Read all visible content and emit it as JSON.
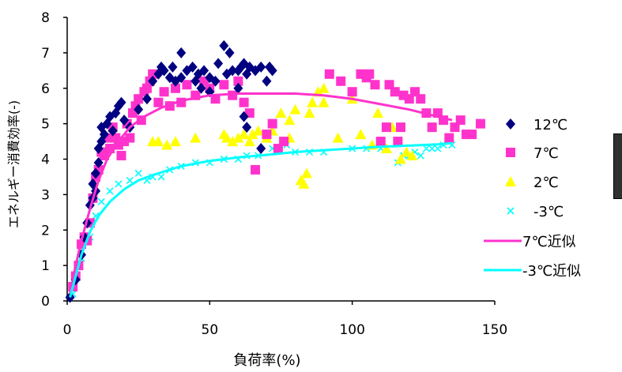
{
  "chart_data": {
    "type": "scatter",
    "xlabel": "負荷率(%)",
    "ylabel": "エネルギー消費効率(-)",
    "xlim": [
      0,
      150
    ],
    "ylim": [
      0,
      8
    ],
    "xticks": [
      0,
      50,
      100,
      150
    ],
    "yticks": [
      0,
      1,
      2,
      3,
      4,
      5,
      6,
      7,
      8
    ],
    "xtick_labels": [
      "0",
      "50",
      "100",
      "150"
    ],
    "ytick_labels": [
      "0",
      "1",
      "2",
      "3",
      "4",
      "5",
      "6",
      "7",
      "8"
    ],
    "grid": false,
    "legend_position": "right",
    "series": [
      {
        "name": "12℃",
        "marker": "diamond",
        "color": "#000080",
        "points": [
          [
            1,
            0.1
          ],
          [
            3,
            0.6
          ],
          [
            5,
            1.3
          ],
          [
            6,
            1.8
          ],
          [
            7,
            2.2
          ],
          [
            8,
            2.7
          ],
          [
            9,
            2.9
          ],
          [
            9,
            3.3
          ],
          [
            10,
            3.1
          ],
          [
            10,
            3.6
          ],
          [
            11,
            3.9
          ],
          [
            11,
            4.3
          ],
          [
            12,
            4.5
          ],
          [
            12,
            4.9
          ],
          [
            13,
            4.7
          ],
          [
            14,
            5.0
          ],
          [
            15,
            5.2
          ],
          [
            16,
            4.8
          ],
          [
            17,
            5.3
          ],
          [
            18,
            5.5
          ],
          [
            19,
            5.6
          ],
          [
            20,
            5.1
          ],
          [
            22,
            4.9
          ],
          [
            25,
            5.4
          ],
          [
            28,
            5.7
          ],
          [
            30,
            6.2
          ],
          [
            32,
            6.4
          ],
          [
            33,
            6.6
          ],
          [
            34,
            6.5
          ],
          [
            36,
            6.3
          ],
          [
            37,
            6.6
          ],
          [
            38,
            6.2
          ],
          [
            40,
            6.3
          ],
          [
            40,
            7.0
          ],
          [
            42,
            6.5
          ],
          [
            44,
            6.6
          ],
          [
            45,
            6.2
          ],
          [
            46,
            6.4
          ],
          [
            48,
            6.5
          ],
          [
            50,
            6.3
          ],
          [
            52,
            6.2
          ],
          [
            53,
            6.7
          ],
          [
            55,
            7.2
          ],
          [
            56,
            6.4
          ],
          [
            57,
            7.0
          ],
          [
            58,
            6.5
          ],
          [
            60,
            6.5
          ],
          [
            61,
            6.6
          ],
          [
            62,
            6.7
          ],
          [
            63,
            6.4
          ],
          [
            64,
            6.6
          ],
          [
            66,
            6.5
          ],
          [
            68,
            6.6
          ],
          [
            70,
            6.2
          ],
          [
            71,
            6.6
          ],
          [
            72,
            6.5
          ],
          [
            62,
            5.2
          ],
          [
            63,
            4.9
          ],
          [
            68,
            4.3
          ],
          [
            60,
            6.0
          ],
          [
            50,
            5.9
          ],
          [
            47,
            6.0
          ]
        ]
      },
      {
        "name": "7℃",
        "marker": "square",
        "color": "#ff33cc",
        "points": [
          [
            2,
            0.4
          ],
          [
            3,
            0.7
          ],
          [
            4,
            1.0
          ],
          [
            5,
            1.6
          ],
          [
            6,
            1.8
          ],
          [
            7,
            1.7
          ],
          [
            8,
            2.2
          ],
          [
            9,
            2.9
          ],
          [
            10,
            3.5
          ],
          [
            11,
            3.7
          ],
          [
            12,
            4.2
          ],
          [
            13,
            4.1
          ],
          [
            14,
            4.6
          ],
          [
            15,
            4.3
          ],
          [
            16,
            4.9
          ],
          [
            17,
            4.6
          ],
          [
            18,
            4.4
          ],
          [
            19,
            4.1
          ],
          [
            20,
            4.5
          ],
          [
            21,
            5.0
          ],
          [
            22,
            4.6
          ],
          [
            23,
            5.3
          ],
          [
            24,
            5.5
          ],
          [
            25,
            5.7
          ],
          [
            26,
            5.1
          ],
          [
            27,
            5.9
          ],
          [
            28,
            6.0
          ],
          [
            29,
            6.2
          ],
          [
            30,
            6.4
          ],
          [
            32,
            5.6
          ],
          [
            34,
            5.9
          ],
          [
            36,
            5.5
          ],
          [
            38,
            6.0
          ],
          [
            40,
            5.6
          ],
          [
            42,
            6.1
          ],
          [
            45,
            5.8
          ],
          [
            48,
            6.2
          ],
          [
            50,
            6.0
          ],
          [
            52,
            5.7
          ],
          [
            55,
            6.1
          ],
          [
            58,
            5.8
          ],
          [
            60,
            6.2
          ],
          [
            62,
            5.6
          ],
          [
            64,
            5.3
          ],
          [
            66,
            3.7
          ],
          [
            70,
            4.7
          ],
          [
            72,
            5.0
          ],
          [
            74,
            4.3
          ],
          [
            76,
            4.5
          ],
          [
            92,
            6.4
          ],
          [
            103,
            6.4
          ],
          [
            105,
            6.3
          ],
          [
            106,
            6.4
          ],
          [
            108,
            6.1
          ],
          [
            110,
            4.5
          ],
          [
            112,
            4.9
          ],
          [
            113,
            6.1
          ],
          [
            115,
            5.9
          ],
          [
            117,
            4.9
          ],
          [
            118,
            5.8
          ],
          [
            120,
            5.7
          ],
          [
            122,
            5.9
          ],
          [
            124,
            5.7
          ],
          [
            126,
            5.3
          ],
          [
            128,
            4.9
          ],
          [
            130,
            5.3
          ],
          [
            132,
            5.1
          ],
          [
            134,
            4.6
          ],
          [
            136,
            4.9
          ],
          [
            138,
            5.1
          ],
          [
            140,
            4.7
          ],
          [
            142,
            4.7
          ],
          [
            145,
            5.0
          ],
          [
            96,
            6.2
          ],
          [
            100,
            5.9
          ],
          [
            116,
            4.5
          ]
        ]
      },
      {
        "name": "2℃",
        "marker": "triangle",
        "color": "#ffff00",
        "points": [
          [
            30,
            4.5
          ],
          [
            32,
            4.5
          ],
          [
            35,
            4.4
          ],
          [
            38,
            4.5
          ],
          [
            45,
            4.6
          ],
          [
            55,
            4.7
          ],
          [
            56,
            4.6
          ],
          [
            58,
            4.5
          ],
          [
            60,
            4.6
          ],
          [
            62,
            4.7
          ],
          [
            64,
            4.5
          ],
          [
            65,
            4.7
          ],
          [
            67,
            4.8
          ],
          [
            70,
            4.6
          ],
          [
            72,
            4.8
          ],
          [
            75,
            5.3
          ],
          [
            78,
            5.1
          ],
          [
            80,
            5.4
          ],
          [
            82,
            3.4
          ],
          [
            83,
            3.3
          ],
          [
            84,
            3.6
          ],
          [
            85,
            5.3
          ],
          [
            86,
            5.6
          ],
          [
            88,
            5.9
          ],
          [
            90,
            5.6
          ],
          [
            95,
            4.6
          ],
          [
            100,
            5.7
          ],
          [
            103,
            4.7
          ],
          [
            107,
            4.4
          ],
          [
            109,
            5.3
          ],
          [
            112,
            4.3
          ],
          [
            114,
            4.9
          ],
          [
            117,
            4.0
          ],
          [
            119,
            4.2
          ],
          [
            121,
            4.1
          ],
          [
            78,
            4.6
          ],
          [
            90,
            6.0
          ]
        ]
      },
      {
        "name": "-3℃",
        "marker": "x",
        "color": "#00ffff",
        "points": [
          [
            2,
            0.2
          ],
          [
            5,
            1.2
          ],
          [
            8,
            1.8
          ],
          [
            10,
            2.4
          ],
          [
            12,
            2.8
          ],
          [
            15,
            3.1
          ],
          [
            18,
            3.3
          ],
          [
            22,
            3.4
          ],
          [
            25,
            3.6
          ],
          [
            28,
            3.4
          ],
          [
            30,
            3.5
          ],
          [
            33,
            3.5
          ],
          [
            36,
            3.7
          ],
          [
            40,
            3.8
          ],
          [
            45,
            3.9
          ],
          [
            50,
            3.9
          ],
          [
            55,
            4.0
          ],
          [
            60,
            4.0
          ],
          [
            63,
            4.1
          ],
          [
            67,
            4.1
          ],
          [
            72,
            4.3
          ],
          [
            77,
            4.4
          ],
          [
            80,
            4.2
          ],
          [
            85,
            4.2
          ],
          [
            90,
            4.2
          ],
          [
            100,
            4.3
          ],
          [
            105,
            4.3
          ],
          [
            110,
            4.3
          ],
          [
            116,
            3.9
          ],
          [
            118,
            4.1
          ],
          [
            120,
            4.1
          ],
          [
            122,
            4.2
          ],
          [
            124,
            4.1
          ],
          [
            126,
            4.3
          ],
          [
            128,
            4.3
          ],
          [
            130,
            4.3
          ],
          [
            132,
            4.4
          ],
          [
            134,
            4.5
          ],
          [
            135,
            4.4
          ]
        ]
      },
      {
        "name": "7℃近似",
        "marker": "line",
        "color": "#ff33cc",
        "points": [
          [
            1,
            0.2
          ],
          [
            3,
            1.0
          ],
          [
            5,
            1.7
          ],
          [
            8,
            2.6
          ],
          [
            11,
            3.4
          ],
          [
            14,
            4.0
          ],
          [
            18,
            4.5
          ],
          [
            22,
            4.9
          ],
          [
            27,
            5.2
          ],
          [
            33,
            5.45
          ],
          [
            40,
            5.65
          ],
          [
            50,
            5.8
          ],
          [
            60,
            5.85
          ],
          [
            70,
            5.85
          ],
          [
            80,
            5.85
          ],
          [
            90,
            5.8
          ],
          [
            100,
            5.7
          ],
          [
            110,
            5.55
          ],
          [
            120,
            5.4
          ],
          [
            130,
            5.2
          ],
          [
            135,
            5.1
          ]
        ]
      },
      {
        "name": "-3℃近似",
        "marker": "line",
        "color": "#00ffff",
        "points": [
          [
            1,
            0.1
          ],
          [
            3,
            0.7
          ],
          [
            5,
            1.3
          ],
          [
            8,
            1.95
          ],
          [
            11,
            2.4
          ],
          [
            15,
            2.8
          ],
          [
            20,
            3.15
          ],
          [
            25,
            3.4
          ],
          [
            30,
            3.55
          ],
          [
            40,
            3.8
          ],
          [
            50,
            3.95
          ],
          [
            60,
            4.05
          ],
          [
            70,
            4.12
          ],
          [
            80,
            4.2
          ],
          [
            90,
            4.25
          ],
          [
            100,
            4.3
          ],
          [
            110,
            4.35
          ],
          [
            120,
            4.38
          ],
          [
            130,
            4.42
          ],
          [
            135,
            4.45
          ]
        ]
      }
    ]
  }
}
